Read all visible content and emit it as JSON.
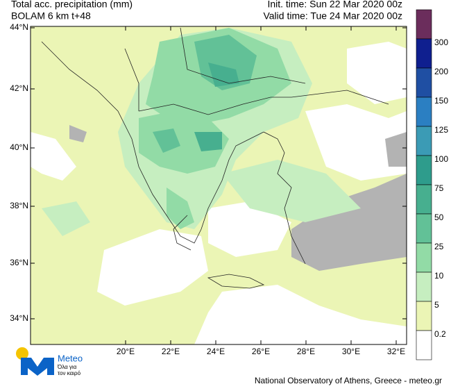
{
  "header": {
    "title": "Total acc. precipitation (mm)",
    "model": "BOLAM 6 km t+48",
    "init_time": "Init. time: Sun 22 Mar 2020 00z",
    "valid_time": "Valid time: Tue 24 Mar 2020 00z"
  },
  "map": {
    "lat_labels": [
      "44°N",
      "42°N",
      "40°N",
      "38°N",
      "36°N",
      "34°N"
    ],
    "lon_labels": [
      "20°E",
      "22°E",
      "24°E",
      "26°E",
      "28°E",
      "30°E",
      "32°E"
    ]
  },
  "legend": {
    "labels": [
      "300",
      "200",
      "150",
      "125",
      "100",
      "75",
      "50",
      "25",
      "10",
      "5",
      "0.2"
    ],
    "colors": [
      "#6b2d5c",
      "#0f1f8f",
      "#1f4fa3",
      "#2b7fc2",
      "#3b9bb5",
      "#2e9c8c",
      "#47af8f",
      "#62c197",
      "#92dba6",
      "#c6eec0",
      "#ebf5b5",
      "#ffffff"
    ]
  },
  "logo": {
    "name": "Meteo",
    "tagline_1": "Όλα για",
    "tagline_2": "τον καιρό"
  },
  "footer": "National Observatory of Athens, Greece - meteo.gr"
}
